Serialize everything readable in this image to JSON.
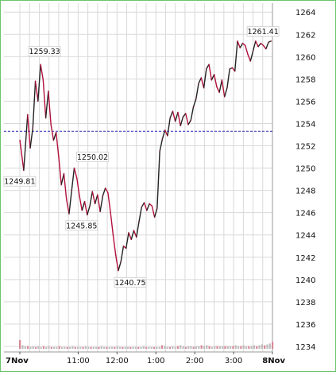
{
  "colors": {
    "border": "#6cc46c",
    "grid": "#d9d9d9",
    "price_up": "#222222",
    "price_down": "#b3103a",
    "reference_line": "#2a2ab8",
    "volume_base": "#bdbdbd",
    "volume_accent": "#d98a9a"
  },
  "chart_data": {
    "type": "line",
    "title": "",
    "xlabel": "",
    "ylabel": "",
    "ylim": [
      1233.5,
      1264.8
    ],
    "xlim_minutes": [
      0,
      390
    ],
    "grid": true,
    "y_axis_side": "right",
    "y_ticks": [
      1234,
      1236,
      1238,
      1240,
      1242,
      1244,
      1246,
      1248,
      1250,
      1252,
      1254,
      1256,
      1258,
      1260,
      1262,
      1264
    ],
    "x_ticks": [
      {
        "label": "7Nov",
        "bold": true,
        "minute": 0
      },
      {
        "label": "11:00",
        "bold": false,
        "minute": 90
      },
      {
        "label": "12:00",
        "bold": false,
        "minute": 150
      },
      {
        "label": "1:00",
        "bold": false,
        "minute": 210
      },
      {
        "label": "2:00",
        "bold": false,
        "minute": 270
      },
      {
        "label": "3:00",
        "bold": false,
        "minute": 330
      },
      {
        "label": "8Nov",
        "bold": true,
        "minute": 390
      }
    ],
    "reference_line": 1253.3,
    "series": [
      {
        "x": [
          0,
          6,
          12,
          16,
          20,
          24,
          28,
          32,
          36,
          40,
          44,
          48,
          52,
          56,
          60,
          64,
          68,
          72,
          76,
          80,
          84,
          88,
          92,
          96,
          100,
          104,
          108,
          112,
          116,
          120,
          124,
          128,
          132,
          136,
          140,
          144,
          148,
          152,
          156,
          160,
          164,
          168,
          172,
          176,
          180,
          184,
          188,
          192,
          196,
          200,
          204,
          208,
          212,
          216,
          220,
          224,
          228,
          232,
          236,
          240,
          244,
          248,
          252,
          256,
          260,
          264,
          268,
          272,
          276,
          280,
          284,
          288,
          292,
          296,
          300,
          304,
          308,
          312,
          316,
          320,
          324,
          328,
          332,
          336,
          340,
          344,
          348,
          352,
          356,
          360,
          364,
          368,
          372,
          376,
          380,
          384,
          388
        ],
        "y": [
          1252.5,
          1249.8,
          1254.8,
          1251.8,
          1253.6,
          1257.8,
          1256.0,
          1259.3,
          1257.9,
          1254.5,
          1256.9,
          1253.9,
          1252.5,
          1253.2,
          1251.0,
          1248.5,
          1249.5,
          1247.2,
          1245.9,
          1248.0,
          1250.0,
          1249.1,
          1247.5,
          1246.2,
          1247.0,
          1245.8,
          1246.6,
          1247.9,
          1246.8,
          1247.6,
          1246.1,
          1247.5,
          1248.2,
          1247.8,
          1246.0,
          1244.0,
          1242.2,
          1240.8,
          1241.6,
          1243.0,
          1242.8,
          1244.2,
          1243.6,
          1244.4,
          1243.8,
          1245.2,
          1246.5,
          1246.9,
          1246.2,
          1246.8,
          1246.6,
          1245.6,
          1246.4,
          1251.5,
          1252.6,
          1253.4,
          1252.9,
          1254.5,
          1255.1,
          1254.2,
          1255.0,
          1253.8,
          1254.6,
          1254.9,
          1253.9,
          1254.3,
          1255.5,
          1256.2,
          1257.6,
          1258.1,
          1257.2,
          1258.9,
          1259.3,
          1257.9,
          1258.4,
          1257.3,
          1256.8,
          1257.9,
          1256.4,
          1257.2,
          1258.9,
          1259.0,
          1258.7,
          1261.4,
          1260.8,
          1261.2,
          1261.0,
          1260.2,
          1259.6,
          1260.5,
          1261.4,
          1260.9,
          1261.2,
          1261.0,
          1260.7,
          1261.3,
          1261.4
        ]
      }
    ],
    "annotations": [
      {
        "text": "1259.33",
        "x": 32,
        "y": 1259.33
      },
      {
        "text": "1249.81",
        "x": 6,
        "y": 1249.81
      },
      {
        "text": "1250.02",
        "x": 84,
        "y": 1250.02
      },
      {
        "text": "1245.85",
        "x": 104,
        "y": 1245.85
      },
      {
        "text": "1240.75",
        "x": 152,
        "y": 1240.75
      },
      {
        "text": "1261.41",
        "x": 384,
        "y": 1261.41
      }
    ],
    "volume": [
      10,
      4,
      3,
      3,
      2,
      3,
      2,
      3,
      2,
      3,
      2,
      3,
      2,
      2,
      2,
      3,
      2,
      2,
      2,
      2,
      3,
      2,
      2,
      2,
      2,
      3,
      2,
      2,
      2,
      2,
      2,
      3,
      2,
      2,
      2,
      2,
      2,
      3,
      2,
      2,
      2,
      2,
      2,
      2,
      2,
      2,
      2,
      3,
      2,
      2,
      2,
      2,
      2,
      2,
      4,
      3,
      2,
      2,
      3,
      2,
      3,
      4,
      3,
      2,
      3,
      3,
      2,
      3,
      3,
      4,
      3,
      4,
      3,
      2,
      3,
      3,
      3,
      3,
      3,
      3,
      3,
      3,
      4,
      3,
      3,
      4,
      3,
      3,
      3,
      4,
      3,
      4,
      5,
      4,
      5,
      6,
      8
    ]
  }
}
